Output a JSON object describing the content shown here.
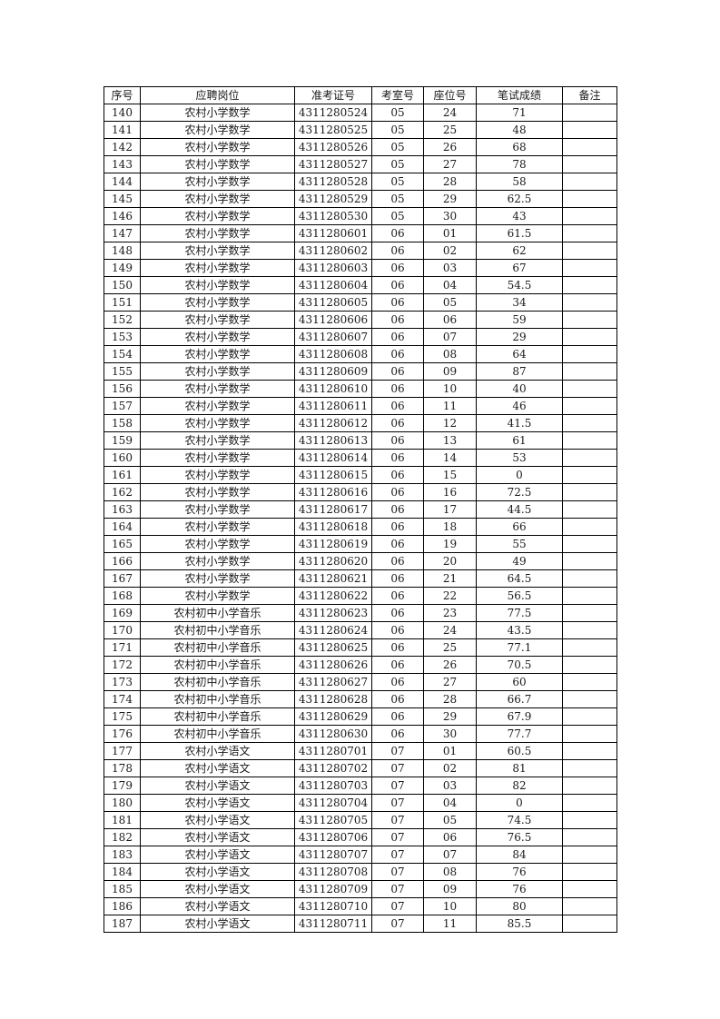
{
  "page": {
    "background_color": "#ffffff",
    "text_color": "#1a1a1a",
    "border_color": "#000000"
  },
  "table": {
    "headers": [
      "序号",
      "应聘岗位",
      "准考证号",
      "考室号",
      "座位号",
      "笔试成绩",
      "备注"
    ],
    "rows": [
      [
        "140",
        "农村小学数学",
        "4311280524",
        "05",
        "24",
        "71",
        ""
      ],
      [
        "141",
        "农村小学数学",
        "4311280525",
        "05",
        "25",
        "48",
        ""
      ],
      [
        "142",
        "农村小学数学",
        "4311280526",
        "05",
        "26",
        "68",
        ""
      ],
      [
        "143",
        "农村小学数学",
        "4311280527",
        "05",
        "27",
        "78",
        ""
      ],
      [
        "144",
        "农村小学数学",
        "4311280528",
        "05",
        "28",
        "58",
        ""
      ],
      [
        "145",
        "农村小学数学",
        "4311280529",
        "05",
        "29",
        "62.5",
        ""
      ],
      [
        "146",
        "农村小学数学",
        "4311280530",
        "05",
        "30",
        "43",
        ""
      ],
      [
        "147",
        "农村小学数学",
        "4311280601",
        "06",
        "01",
        "61.5",
        ""
      ],
      [
        "148",
        "农村小学数学",
        "4311280602",
        "06",
        "02",
        "62",
        ""
      ],
      [
        "149",
        "农村小学数学",
        "4311280603",
        "06",
        "03",
        "67",
        ""
      ],
      [
        "150",
        "农村小学数学",
        "4311280604",
        "06",
        "04",
        "54.5",
        ""
      ],
      [
        "151",
        "农村小学数学",
        "4311280605",
        "06",
        "05",
        "34",
        ""
      ],
      [
        "152",
        "农村小学数学",
        "4311280606",
        "06",
        "06",
        "59",
        ""
      ],
      [
        "153",
        "农村小学数学",
        "4311280607",
        "06",
        "07",
        "29",
        ""
      ],
      [
        "154",
        "农村小学数学",
        "4311280608",
        "06",
        "08",
        "64",
        ""
      ],
      [
        "155",
        "农村小学数学",
        "4311280609",
        "06",
        "09",
        "87",
        ""
      ],
      [
        "156",
        "农村小学数学",
        "4311280610",
        "06",
        "10",
        "40",
        ""
      ],
      [
        "157",
        "农村小学数学",
        "4311280611",
        "06",
        "11",
        "46",
        ""
      ],
      [
        "158",
        "农村小学数学",
        "4311280612",
        "06",
        "12",
        "41.5",
        ""
      ],
      [
        "159",
        "农村小学数学",
        "4311280613",
        "06",
        "13",
        "61",
        ""
      ],
      [
        "160",
        "农村小学数学",
        "4311280614",
        "06",
        "14",
        "53",
        ""
      ],
      [
        "161",
        "农村小学数学",
        "4311280615",
        "06",
        "15",
        "0",
        ""
      ],
      [
        "162",
        "农村小学数学",
        "4311280616",
        "06",
        "16",
        "72.5",
        ""
      ],
      [
        "163",
        "农村小学数学",
        "4311280617",
        "06",
        "17",
        "44.5",
        ""
      ],
      [
        "164",
        "农村小学数学",
        "4311280618",
        "06",
        "18",
        "66",
        ""
      ],
      [
        "165",
        "农村小学数学",
        "4311280619",
        "06",
        "19",
        "55",
        ""
      ],
      [
        "166",
        "农村小学数学",
        "4311280620",
        "06",
        "20",
        "49",
        ""
      ],
      [
        "167",
        "农村小学数学",
        "4311280621",
        "06",
        "21",
        "64.5",
        ""
      ],
      [
        "168",
        "农村小学数学",
        "4311280622",
        "06",
        "22",
        "56.5",
        ""
      ],
      [
        "169",
        "农村初中小学音乐",
        "4311280623",
        "06",
        "23",
        "77.5",
        ""
      ],
      [
        "170",
        "农村初中小学音乐",
        "4311280624",
        "06",
        "24",
        "43.5",
        ""
      ],
      [
        "171",
        "农村初中小学音乐",
        "4311280625",
        "06",
        "25",
        "77.1",
        ""
      ],
      [
        "172",
        "农村初中小学音乐",
        "4311280626",
        "06",
        "26",
        "70.5",
        ""
      ],
      [
        "173",
        "农村初中小学音乐",
        "4311280627",
        "06",
        "27",
        "60",
        ""
      ],
      [
        "174",
        "农村初中小学音乐",
        "4311280628",
        "06",
        "28",
        "66.7",
        ""
      ],
      [
        "175",
        "农村初中小学音乐",
        "4311280629",
        "06",
        "29",
        "67.9",
        ""
      ],
      [
        "176",
        "农村初中小学音乐",
        "4311280630",
        "06",
        "30",
        "77.7",
        ""
      ],
      [
        "177",
        "农村小学语文",
        "4311280701",
        "07",
        "01",
        "60.5",
        ""
      ],
      [
        "178",
        "农村小学语文",
        "4311280702",
        "07",
        "02",
        "81",
        ""
      ],
      [
        "179",
        "农村小学语文",
        "4311280703",
        "07",
        "03",
        "82",
        ""
      ],
      [
        "180",
        "农村小学语文",
        "4311280704",
        "07",
        "04",
        "0",
        ""
      ],
      [
        "181",
        "农村小学语文",
        "4311280705",
        "07",
        "05",
        "74.5",
        ""
      ],
      [
        "182",
        "农村小学语文",
        "4311280706",
        "07",
        "06",
        "76.5",
        ""
      ],
      [
        "183",
        "农村小学语文",
        "4311280707",
        "07",
        "07",
        "84",
        ""
      ],
      [
        "184",
        "农村小学语文",
        "4311280708",
        "07",
        "08",
        "76",
        ""
      ],
      [
        "185",
        "农村小学语文",
        "4311280709",
        "07",
        "09",
        "76",
        ""
      ],
      [
        "186",
        "农村小学语文",
        "4311280710",
        "07",
        "10",
        "80",
        ""
      ],
      [
        "187",
        "农村小学语文",
        "4311280711",
        "07",
        "11",
        "85.5",
        ""
      ]
    ]
  }
}
